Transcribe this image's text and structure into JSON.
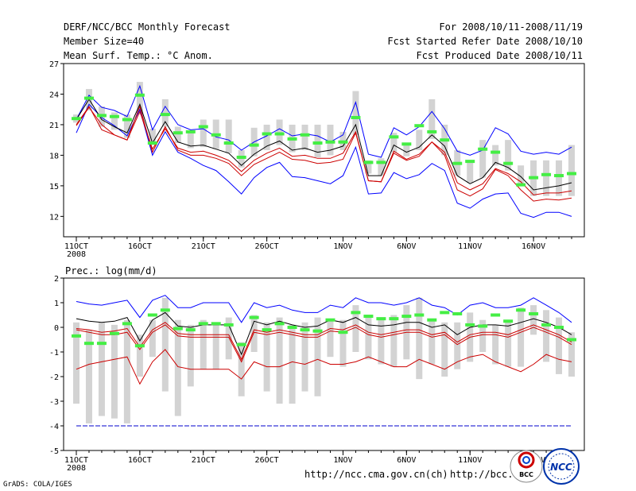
{
  "header": {
    "title": "DERF/NCC/BCC Monthly Forecast",
    "member_size": "Member Size=40",
    "variable": "Mean Surf. Temp.: °C Anom.",
    "period": "For 2008/10/11-2008/11/19",
    "started": "Fcst Started Refer Date 2008/10/10",
    "produced": "Fcst Produced Date 2008/10/11"
  },
  "footer": {
    "url1": "http://ncc.cma.gov.cn(ch)",
    "url2": "http://bcc.",
    "grads": "GrADS: COLA/IGES",
    "logo_bcc": "BCC",
    "logo_ncc": "NCC"
  },
  "colors": {
    "outer": "#0000ff",
    "inner": "#cc0000",
    "median": "#000000",
    "box": "#d3d3d3",
    "mean": "#44ee44",
    "dashed": "#0000cc"
  },
  "chart_data": [
    {
      "type": "line",
      "title": "Mean Surf. Temp.: °C Anom.",
      "ylim": [
        10,
        27
      ],
      "yticks": [
        12,
        15,
        18,
        21,
        24,
        27
      ],
      "xtick_labels": [
        "11OCT",
        "16OCT",
        "21OCT",
        "26OCT",
        "1NOV",
        "6NOV",
        "11NOV",
        "16NOV"
      ],
      "xtick_days": [
        0,
        5,
        10,
        15,
        21,
        26,
        31,
        36
      ],
      "year_label": "2008",
      "days": 40,
      "series": [
        {
          "name": "max",
          "values": [
            20.2,
            23.0,
            21.7,
            20.9,
            19.9,
            22.5,
            18.0,
            20.3,
            18.3,
            17.7,
            17.0,
            16.5,
            15.4,
            14.2,
            15.8,
            16.8,
            17.3,
            15.9,
            15.8,
            15.5,
            15.2,
            16.0,
            18.8,
            14.2,
            14.3,
            16.3,
            15.7,
            16.1,
            17.2,
            16.5,
            13.3,
            12.8,
            13.7,
            14.2,
            14.3,
            12.3,
            11.9,
            12.4,
            12.4,
            12.0
          ]
        },
        {
          "name": "q90",
          "values": [
            21.5,
            23.9,
            22.7,
            22.4,
            21.8,
            24.8,
            20.5,
            22.8,
            21.0,
            20.5,
            20.6,
            19.8,
            19.5,
            18.5,
            19.3,
            19.9,
            20.6,
            19.9,
            20.1,
            19.9,
            19.3,
            20.0,
            23.2,
            18.1,
            17.8,
            20.7,
            20.0,
            20.8,
            22.3,
            20.6,
            18.4,
            18.0,
            18.5,
            20.7,
            20.1,
            18.4,
            18.1,
            18.3,
            18.1,
            18.8
          ]
        },
        {
          "name": "median",
          "values": [
            21.5,
            23.5,
            21.5,
            20.8,
            20.2,
            23.0,
            19.2,
            21.3,
            19.3,
            18.9,
            19.0,
            18.6,
            18.2,
            17.0,
            18.1,
            18.9,
            19.4,
            18.5,
            18.7,
            18.3,
            18.5,
            18.9,
            21.0,
            16.0,
            16.0,
            19.0,
            18.3,
            18.8,
            20.0,
            18.9,
            16.0,
            15.2,
            15.8,
            17.3,
            16.8,
            15.9,
            14.6,
            14.8,
            15.0,
            15.3
          ]
        },
        {
          "name": "q10",
          "values": [
            20.9,
            22.7,
            21.0,
            20.0,
            19.5,
            22.3,
            18.6,
            20.6,
            18.7,
            18.3,
            18.4,
            18.0,
            17.5,
            16.4,
            17.5,
            18.2,
            18.7,
            17.9,
            18.0,
            17.7,
            17.7,
            18.2,
            20.3,
            15.5,
            15.4,
            18.4,
            17.6,
            18.1,
            19.3,
            18.3,
            15.3,
            14.6,
            15.2,
            16.7,
            16.2,
            15.4,
            14.1,
            14.3,
            14.3,
            14.5
          ]
        },
        {
          "name": "min",
          "values": [
            21.0,
            22.8,
            20.5,
            20.0,
            19.5,
            22.8,
            18.3,
            20.8,
            18.5,
            18.0,
            18.0,
            17.7,
            17.2,
            16.0,
            17.1,
            17.7,
            18.3,
            17.6,
            17.5,
            17.2,
            17.3,
            17.6,
            20.2,
            15.5,
            15.4,
            18.2,
            17.5,
            17.9,
            19.3,
            18.0,
            14.6,
            14.0,
            14.7,
            16.6,
            16.0,
            14.6,
            13.5,
            13.7,
            13.6,
            13.8
          ]
        }
      ],
      "boxes_low": [
        21.2,
        22.4,
        20.8,
        20.5,
        19.7,
        22.0,
        19.0,
        20.8,
        19.2,
        18.7,
        18.8,
        18.6,
        18.2,
        16.8,
        17.9,
        18.5,
        19.0,
        18.3,
        18.5,
        17.8,
        18.0,
        18.5,
        20.0,
        16.2,
        16.0,
        18.3,
        17.9,
        18.5,
        19.6,
        18.0,
        16.0,
        15.3,
        15.8,
        17.0,
        16.5,
        15.0,
        14.0,
        14.0,
        14.0,
        14.0
      ],
      "boxes_high": [
        22.0,
        24.5,
        22.8,
        22.2,
        22.0,
        25.2,
        20.6,
        23.5,
        20.8,
        20.2,
        21.5,
        21.5,
        21.5,
        18.5,
        20.7,
        21.0,
        21.5,
        21.0,
        21.0,
        21.0,
        21.0,
        20.3,
        24.3,
        17.5,
        17.7,
        20.2,
        19.0,
        20.5,
        23.5,
        21.0,
        18.5,
        17.3,
        19.5,
        19.0,
        19.5,
        17.0,
        17.5,
        17.5,
        17.5,
        19.0
      ],
      "means": [
        21.6,
        23.6,
        21.9,
        21.8,
        21.5,
        23.9,
        19.2,
        22.0,
        20.2,
        20.3,
        20.8,
        20.0,
        19.2,
        17.8,
        19.0,
        20.1,
        20.1,
        19.6,
        20.0,
        19.2,
        19.3,
        19.3,
        21.7,
        17.3,
        17.3,
        19.8,
        19.1,
        20.9,
        20.3,
        19.5,
        17.2,
        17.4,
        18.6,
        18.3,
        17.2,
        15.1,
        15.8,
        16.1,
        16.0,
        16.2
      ]
    },
    {
      "type": "line",
      "title": "Prec.: log(mm/d)",
      "ylim": [
        -5,
        2
      ],
      "yticks": [
        -5,
        -4,
        -3,
        -2,
        -1,
        0,
        1,
        2
      ],
      "xtick_labels": [
        "11OCT",
        "16OCT",
        "21OCT",
        "26OCT",
        "1NOV",
        "6NOV",
        "11NOV",
        "16NOV"
      ],
      "xtick_days": [
        0,
        5,
        10,
        15,
        21,
        26,
        31,
        36
      ],
      "year_label": "2008",
      "dashed_level": -4,
      "days": 40,
      "series": [
        {
          "name": "max",
          "values": [
            -1.7,
            -1.5,
            -1.4,
            -1.3,
            -1.2,
            -2.3,
            -1.4,
            -0.9,
            -1.6,
            -1.7,
            -1.7,
            -1.7,
            -1.7,
            -2.1,
            -1.4,
            -1.6,
            -1.6,
            -1.4,
            -1.5,
            -1.3,
            -1.5,
            -1.5,
            -1.4,
            -1.2,
            -1.4,
            -1.6,
            -1.6,
            -1.3,
            -1.5,
            -1.7,
            -1.4,
            -1.2,
            -1.1,
            -1.4,
            -1.6,
            -1.8,
            -1.5,
            -1.1,
            -1.3,
            -1.4
          ]
        },
        {
          "name": "q90",
          "values": [
            1.05,
            0.95,
            0.9,
            1.0,
            1.1,
            0.4,
            1.1,
            1.3,
            0.8,
            0.8,
            1.0,
            1.0,
            1.0,
            0.2,
            1.0,
            0.8,
            0.9,
            0.7,
            0.6,
            0.6,
            0.9,
            0.8,
            1.2,
            1.0,
            1.0,
            0.9,
            1.0,
            1.2,
            0.9,
            0.8,
            0.5,
            0.9,
            1.0,
            0.8,
            0.8,
            0.9,
            1.2,
            0.9,
            0.6,
            0.2
          ]
        },
        {
          "name": "median",
          "values": [
            0.35,
            0.25,
            0.2,
            0.25,
            0.4,
            -0.55,
            0.3,
            0.6,
            0.05,
            0.0,
            0.1,
            0.1,
            0.1,
            -1.1,
            0.25,
            0.1,
            0.25,
            0.1,
            0.0,
            0.05,
            0.3,
            0.2,
            0.4,
            0.1,
            0.05,
            0.1,
            0.2,
            0.2,
            0.0,
            0.1,
            -0.3,
            0.0,
            0.1,
            0.1,
            0.05,
            0.2,
            0.35,
            0.2,
            0.0,
            -0.3
          ]
        },
        {
          "name": "q10",
          "values": [
            -0.05,
            -0.1,
            -0.2,
            -0.15,
            -0.05,
            -0.8,
            -0.1,
            0.2,
            -0.25,
            -0.3,
            -0.3,
            -0.3,
            -0.3,
            -1.3,
            -0.1,
            -0.2,
            -0.1,
            -0.2,
            -0.3,
            -0.3,
            -0.05,
            -0.1,
            0.1,
            -0.2,
            -0.3,
            -0.2,
            -0.1,
            -0.1,
            -0.3,
            -0.2,
            -0.6,
            -0.3,
            -0.2,
            -0.2,
            -0.3,
            -0.1,
            0.1,
            -0.1,
            -0.3,
            -0.6
          ]
        },
        {
          "name": "min",
          "values": [
            -0.1,
            -0.2,
            -0.3,
            -0.3,
            -0.2,
            -0.9,
            -0.2,
            0.1,
            -0.35,
            -0.4,
            -0.4,
            -0.4,
            -0.4,
            -1.4,
            -0.2,
            -0.3,
            -0.2,
            -0.3,
            -0.4,
            -0.4,
            -0.15,
            -0.2,
            0.0,
            -0.3,
            -0.4,
            -0.3,
            -0.2,
            -0.2,
            -0.4,
            -0.3,
            -0.7,
            -0.4,
            -0.3,
            -0.3,
            -0.4,
            -0.2,
            0.0,
            -0.2,
            -0.4,
            -0.7
          ]
        }
      ],
      "boxes_low": [
        -3.1,
        -3.9,
        -3.6,
        -3.7,
        -3.9,
        -2.0,
        -1.2,
        -2.6,
        -3.6,
        -2.4,
        -1.7,
        -1.7,
        -1.3,
        -2.8,
        -1.0,
        -2.6,
        -3.1,
        -3.1,
        -2.6,
        -2.8,
        -1.2,
        -1.6,
        -1.0,
        -1.3,
        -1.5,
        -1.6,
        -1.3,
        -2.1,
        -1.5,
        -2.0,
        -1.7,
        -1.4,
        -1.0,
        -1.5,
        -1.6,
        -1.6,
        -0.3,
        -1.4,
        -1.9,
        -2.0
      ],
      "boxes_high": [
        0.2,
        -0.1,
        0.2,
        0.1,
        0.3,
        -0.3,
        0.3,
        1.2,
        0.3,
        0.1,
        0.3,
        0.2,
        0.4,
        -0.6,
        0.5,
        0.2,
        0.4,
        0.1,
        0.2,
        0.4,
        0.3,
        0.3,
        0.9,
        0.5,
        0.3,
        0.5,
        0.9,
        1.2,
        0.3,
        0.2,
        0.2,
        0.6,
        0.3,
        0.1,
        0.3,
        0.8,
        0.9,
        0.7,
        0.4,
        -0.2
      ],
      "means": [
        -0.35,
        -0.65,
        -0.65,
        -0.25,
        0.15,
        -0.75,
        0.5,
        0.7,
        -0.05,
        -0.1,
        0.15,
        0.15,
        0.1,
        -0.7,
        0.4,
        -0.1,
        0.15,
        0.0,
        -0.1,
        -0.15,
        0.3,
        -0.2,
        0.6,
        0.45,
        0.35,
        0.35,
        0.45,
        0.5,
        0.3,
        0.6,
        0.55,
        0.1,
        0.05,
        0.5,
        0.25,
        0.7,
        0.55,
        0.1,
        0.0,
        -0.5
      ]
    }
  ]
}
